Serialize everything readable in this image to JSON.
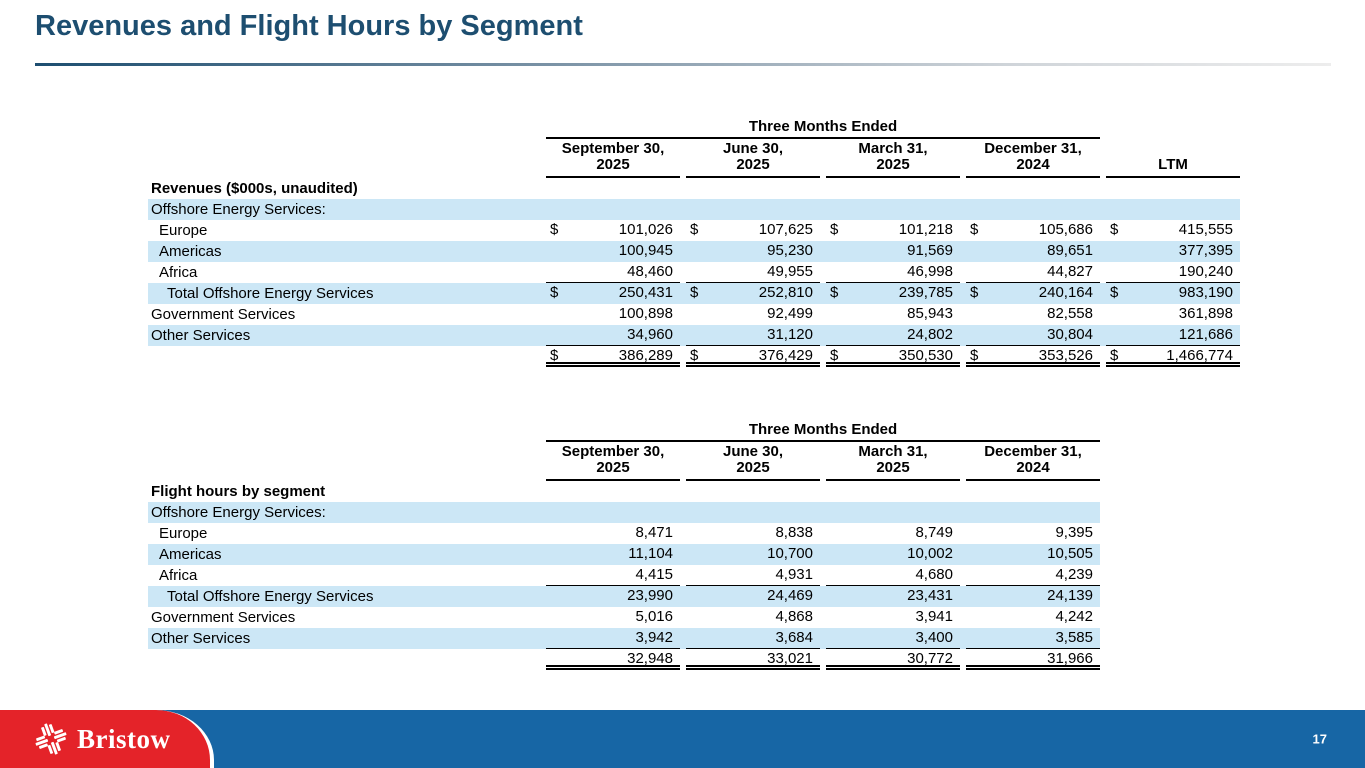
{
  "slide": {
    "title": "Revenues and Flight Hours by Segment",
    "page_number": "17"
  },
  "colors": {
    "title_navy": "#1d4e70",
    "row_stripe_blue": "#cce7f6",
    "footer_blue": "#1766a5",
    "brand_red": "#e42329"
  },
  "footer": {
    "logo_text": "Bristow",
    "logo_icon": "bristow-pinwheel-icon"
  },
  "revenues_table": {
    "spanner": "Three Months Ended",
    "columns": [
      {
        "line1": "September 30,",
        "line2": "2025"
      },
      {
        "line1": "June 30,",
        "line2": "2025"
      },
      {
        "line1": "March 31,",
        "line2": "2025"
      },
      {
        "line1": "December 31,",
        "line2": "2024"
      }
    ],
    "ltm_label": "LTM",
    "rows": [
      {
        "label": "Revenues ($000s, unaudited)",
        "bold": true,
        "values": []
      },
      {
        "label": "Offshore Energy Services:",
        "shade": true,
        "values": []
      },
      {
        "label": "Europe",
        "indent": 1,
        "dollar": true,
        "values": [
          "101,026",
          "107,625",
          "101,218",
          "105,686",
          "415,555"
        ]
      },
      {
        "label": "Americas",
        "indent": 1,
        "shade": true,
        "values": [
          "100,945",
          "95,230",
          "91,569",
          "89,651",
          "377,395"
        ]
      },
      {
        "label": "Africa",
        "indent": 1,
        "values": [
          "48,460",
          "49,955",
          "46,998",
          "44,827",
          "190,240"
        ],
        "rule": "single"
      },
      {
        "label": "Total Offshore Energy Services",
        "indent": 2,
        "shade": true,
        "dollar": true,
        "values": [
          "250,431",
          "252,810",
          "239,785",
          "240,164",
          "983,190"
        ]
      },
      {
        "label": "Government Services",
        "values": [
          "100,898",
          "92,499",
          "85,943",
          "82,558",
          "361,898"
        ]
      },
      {
        "label": "Other Services",
        "shade": true,
        "values": [
          "34,960",
          "31,120",
          "24,802",
          "30,804",
          "121,686"
        ],
        "rule": "single"
      },
      {
        "label": "",
        "dollar": true,
        "values": [
          "386,289",
          "376,429",
          "350,530",
          "353,526",
          "1,466,774"
        ],
        "rule": "double"
      }
    ]
  },
  "flight_hours_table": {
    "spanner": "Three Months Ended",
    "columns": [
      {
        "line1": "September 30,",
        "line2": "2025"
      },
      {
        "line1": "June 30,",
        "line2": "2025"
      },
      {
        "line1": "March 31,",
        "line2": "2025"
      },
      {
        "line1": "December 31,",
        "line2": "2024"
      }
    ],
    "rows": [
      {
        "label": "Flight hours by segment",
        "bold": true,
        "values": []
      },
      {
        "label": "Offshore Energy Services:",
        "shade": true,
        "values": []
      },
      {
        "label": "Europe",
        "indent": 1,
        "values": [
          "8,471",
          "8,838",
          "8,749",
          "9,395"
        ]
      },
      {
        "label": "Americas",
        "indent": 1,
        "shade": true,
        "values": [
          "11,104",
          "10,700",
          "10,002",
          "10,505"
        ]
      },
      {
        "label": "Africa",
        "indent": 1,
        "values": [
          "4,415",
          "4,931",
          "4,680",
          "4,239"
        ],
        "rule": "single"
      },
      {
        "label": "Total Offshore Energy Services",
        "indent": 2,
        "shade": true,
        "values": [
          "23,990",
          "24,469",
          "23,431",
          "24,139"
        ]
      },
      {
        "label": "Government Services",
        "values": [
          "5,016",
          "4,868",
          "3,941",
          "4,242"
        ]
      },
      {
        "label": "Other Services",
        "shade": true,
        "values": [
          "3,942",
          "3,684",
          "3,400",
          "3,585"
        ],
        "rule": "single"
      },
      {
        "label": "",
        "values": [
          "32,948",
          "33,021",
          "30,772",
          "31,966"
        ],
        "rule": "double"
      }
    ]
  }
}
